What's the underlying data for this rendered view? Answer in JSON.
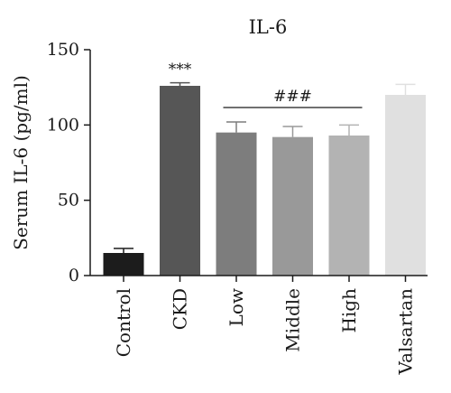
{
  "chart_data": {
    "type": "bar",
    "title": "IL-6",
    "ylabel": "Serum IL-6 (pg/ml)",
    "xlabel": "",
    "ylim": [
      0,
      150
    ],
    "yticks": [
      0,
      50,
      100,
      150
    ],
    "categories": [
      "Control",
      "CKD",
      "Low",
      "Middle",
      "High",
      "Valsartan"
    ],
    "values": [
      15,
      126,
      95,
      92,
      93,
      120
    ],
    "errors": [
      3,
      2,
      7,
      7,
      7,
      7
    ],
    "colors": [
      "#1c1c1c",
      "#565656",
      "#7d7d7d",
      "#999999",
      "#b3b3b3",
      "#e0e0e0"
    ],
    "annotations": [
      {
        "text": "***",
        "category_index": 1
      },
      {
        "text": "###",
        "from_index": 2,
        "to_index": 4,
        "bracket": true
      }
    ],
    "grid": false,
    "legend": "none"
  }
}
